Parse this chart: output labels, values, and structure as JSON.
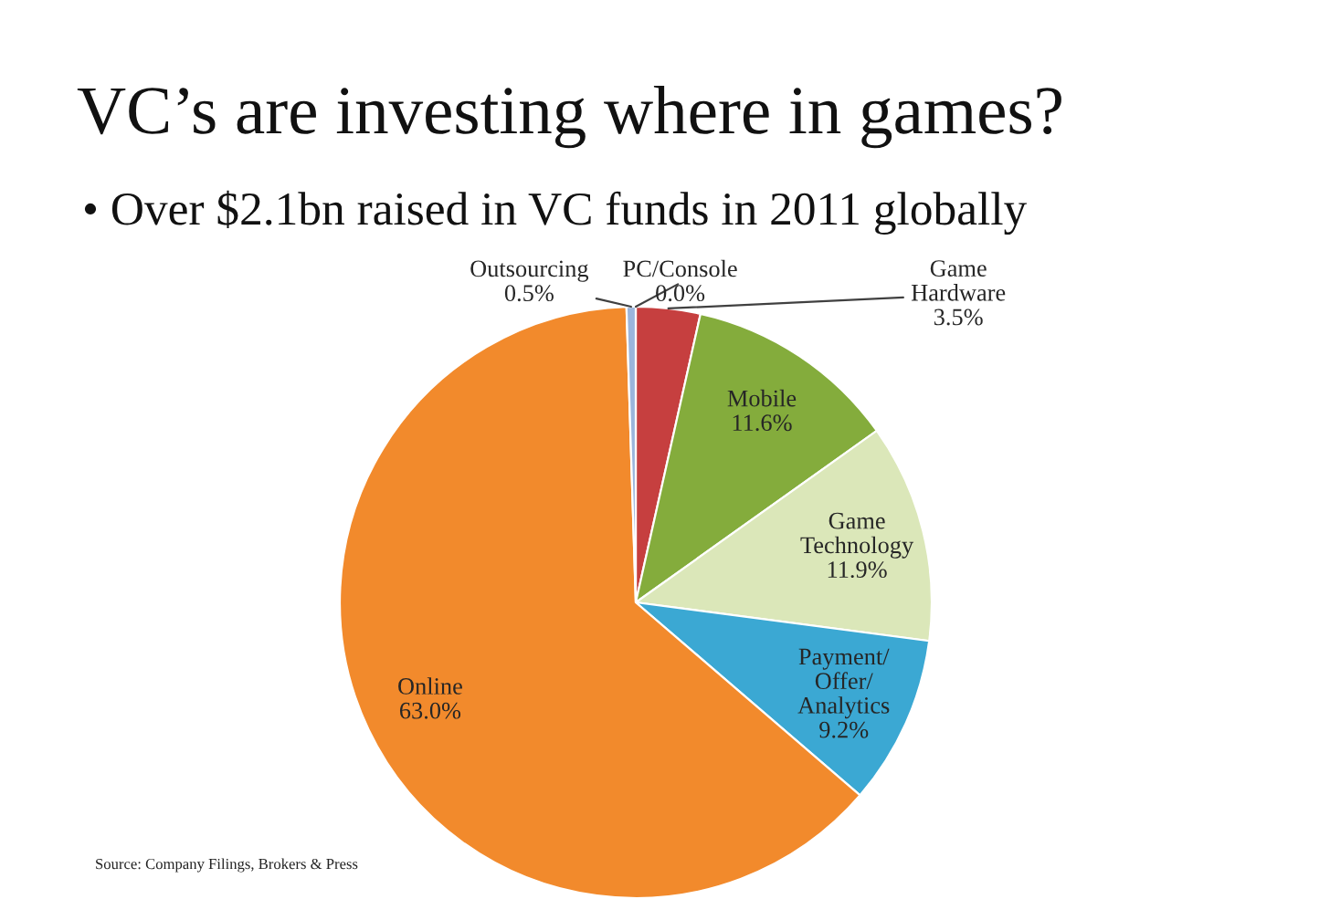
{
  "chart_data": {
    "type": "pie",
    "title": "VC’s are investing where in games?",
    "subtitle": "• Over $2.1bn raised in VC funds in 2011 globally",
    "categories": [
      "PC/Console",
      "Game Hardware",
      "Mobile",
      "Game Technology",
      "Payment/Offer/Analytics",
      "Online",
      "Outsourcing"
    ],
    "values": [
      0.0,
      3.5,
      11.6,
      11.9,
      9.2,
      63.0,
      0.5
    ],
    "value_labels": [
      "0.0%",
      "3.5%",
      "11.6%",
      "11.9%",
      "9.2%",
      "63.0%",
      "0.5%"
    ],
    "colors": [
      "#4f81bd",
      "#c63f3f",
      "#84ac3c",
      "#dbe7b9",
      "#3ba8d3",
      "#f28a2c",
      "#9bb5dc"
    ],
    "annotations": [
      "Source: Company Filings, Brokers & Press"
    ]
  }
}
